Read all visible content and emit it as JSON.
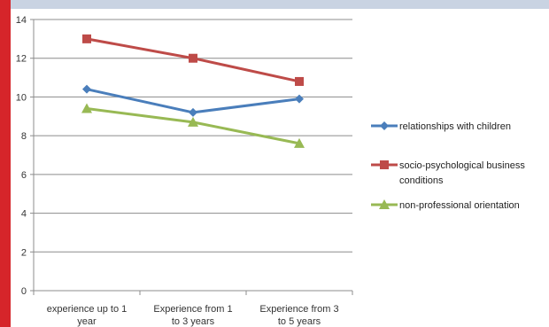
{
  "chart_data": {
    "type": "line",
    "title": "",
    "xlabel": "",
    "ylabel": "",
    "categories": [
      [
        "experience up to 1",
        "year"
      ],
      [
        "Experience from 1",
        "to 3 years"
      ],
      [
        "Experience from 3",
        "to 5 years"
      ]
    ],
    "ylim": [
      0,
      14
    ],
    "yticks": [
      0,
      2,
      4,
      6,
      8,
      10,
      12,
      14
    ],
    "grid": "horizontal",
    "legend_position": "right",
    "series": [
      {
        "name": [
          "relationships with children"
        ],
        "values": [
          10.4,
          9.2,
          9.9
        ],
        "color": "#4a7ebb",
        "marker": "diamond"
      },
      {
        "name": [
          "socio-psychological business",
          "conditions"
        ],
        "values": [
          13.0,
          12.0,
          10.8
        ],
        "color": "#be4b48",
        "marker": "square"
      },
      {
        "name": [
          "non-professional orientation"
        ],
        "values": [
          9.4,
          8.7,
          7.6
        ],
        "color": "#98b954",
        "marker": "triangle"
      }
    ]
  }
}
